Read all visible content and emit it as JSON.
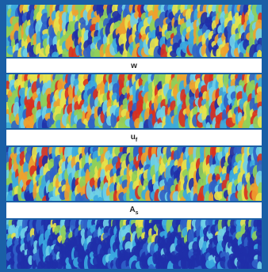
{
  "labels": {
    "w": "w",
    "uf_base": "u",
    "uf_sub": "f",
    "as_base": "A",
    "as_sub": "s"
  },
  "palette": {
    "frame": "#1a5fa6",
    "deep_blue": "#1f2fa8",
    "blue": "#2f62c8",
    "cyan": "#3aa8e0",
    "light_cyan": "#6fd0e8",
    "green": "#8fcf5a",
    "yellow": "#e8e24a",
    "orange": "#f0a12d",
    "red": "#d9301f"
  },
  "panels": [
    {
      "name": "panel-1",
      "bias": 0.45
    },
    {
      "name": "panel-2",
      "bias": 0.55
    },
    {
      "name": "panel-3",
      "bias": 0.5
    },
    {
      "name": "panel-4",
      "bias": 0.25
    }
  ]
}
